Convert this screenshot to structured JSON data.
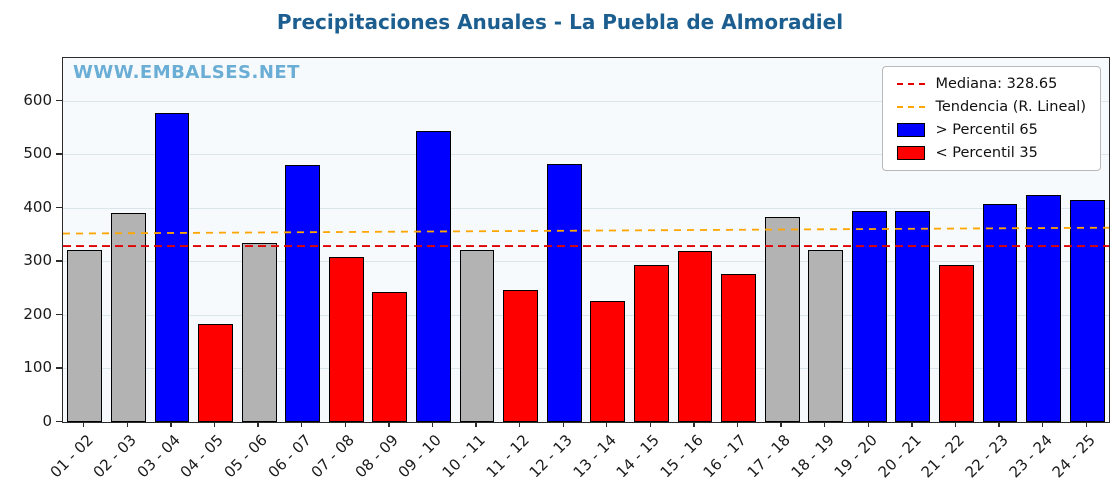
{
  "watermark": "WWW.EMBALSES.NET",
  "chart_data": {
    "type": "bar",
    "title": "Precipitaciones Anuales - La Puebla de Almoradiel",
    "xlabel": "",
    "ylabel": "",
    "ylim": [
      0,
      680
    ],
    "yticks": [
      0,
      100,
      200,
      300,
      400,
      500,
      600
    ],
    "grid": true,
    "categories": [
      "01 - 02",
      "02 - 03",
      "03 - 04",
      "04 - 05",
      "05 - 06",
      "06 - 07",
      "07 - 08",
      "08 - 09",
      "09 - 10",
      "10 - 11",
      "11 - 12",
      "12 - 13",
      "13 - 14",
      "14 - 15",
      "15 - 16",
      "16 - 17",
      "17 - 18",
      "18 - 19",
      "19 - 20",
      "20 - 21",
      "21 - 22",
      "22 - 23",
      "23 - 24",
      "24 - 25"
    ],
    "values": [
      322,
      390,
      577,
      183,
      334,
      481,
      308,
      243,
      543,
      322,
      247,
      482,
      227,
      293,
      319,
      277,
      383,
      322,
      395,
      394,
      293,
      408,
      424,
      415
    ],
    "bar_classes": [
      "mid",
      "mid",
      "above",
      "below",
      "mid",
      "above",
      "below",
      "below",
      "above",
      "mid",
      "below",
      "above",
      "below",
      "below",
      "below",
      "below",
      "mid",
      "mid",
      "above",
      "above",
      "below",
      "above",
      "above",
      "above"
    ],
    "median": 328.65,
    "trend": {
      "start": 352,
      "end": 363
    },
    "colors": {
      "above_p65": "#0000ff",
      "below_p35": "#ff0000",
      "mid": "#b3b3b3",
      "median_line": "#e00000",
      "trend_line": "#ffa500"
    },
    "legend": {
      "position": "top-right",
      "entries": [
        {
          "label": "Mediana: 328.65",
          "type": "dashed-line",
          "color": "#e00000"
        },
        {
          "label": "Tendencia (R. Lineal)",
          "type": "dashed-line",
          "color": "#ffa500"
        },
        {
          "label": "> Percentil 65",
          "type": "patch",
          "color": "#0000ff"
        },
        {
          "label": "< Percentil 35",
          "type": "patch",
          "color": "#ff0000"
        }
      ]
    }
  }
}
